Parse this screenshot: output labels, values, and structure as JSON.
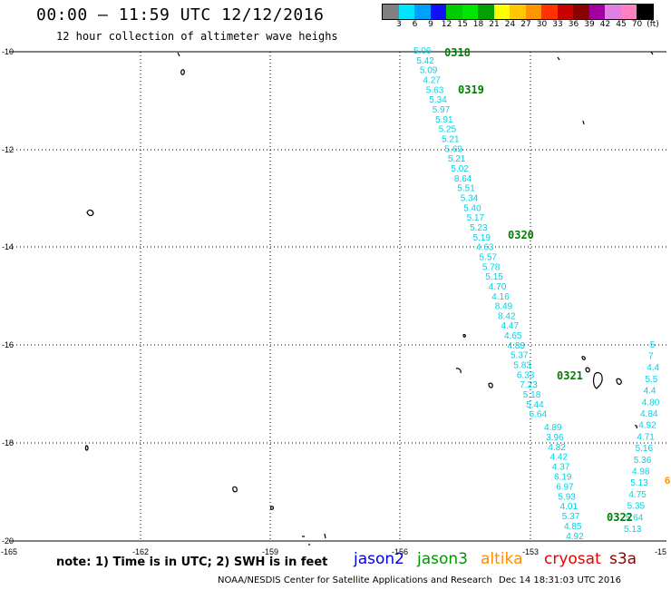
{
  "title": "00:00 – 11:59 UTC 12/12/2016",
  "subtitle": "12 hour collection of altimeter wave heighs",
  "color_scale": {
    "labels": [
      "3",
      "6",
      "9",
      "12",
      "15",
      "18",
      "21",
      "24",
      "27",
      "30",
      "33",
      "36",
      "39",
      "42",
      "45",
      "70",
      "(ft)"
    ],
    "colors": [
      "#808080",
      "#00e5ff",
      "#00a0ff",
      "#1010ff",
      "#00cc00",
      "#00e600",
      "#00a000",
      "#ffff00",
      "#ffc800",
      "#ff9600",
      "#ff3200",
      "#c80000",
      "#8b0000",
      "#a000a0",
      "#e080e0",
      "#ff80c0",
      "#000000"
    ]
  },
  "axes": {
    "x_ticks": [
      "-165",
      "-162",
      "-159",
      "-156",
      "-153",
      "-15"
    ],
    "y_ticks": [
      "-10",
      "-12",
      "-14",
      "-16",
      "-18",
      "-20"
    ]
  },
  "tracks": [
    {
      "values": [
        "5.06",
        "5.42",
        "5.09",
        "4.27",
        "5.63",
        "5.34",
        "5.97",
        "5.91",
        "5.25",
        "5.21",
        "5.69",
        "5.21",
        "5.02",
        "8.64",
        "5.51",
        "5.34",
        "5.40",
        "5.17",
        "5.23",
        "5.19",
        "4.63",
        "5.57",
        "5.78",
        "5.15",
        "4.70",
        "4.16",
        "8.49",
        "8.42",
        "4.47",
        "4.65",
        "4.83",
        "5.37",
        "5.83",
        "6.33",
        "7.23",
        "5.18",
        "5.44",
        "6.64"
      ]
    },
    {
      "values": [
        "4.89",
        "3.96",
        "4.82",
        "4.42",
        "4.37",
        "6.19",
        "6.97",
        "5.93",
        "4.01",
        "5.37",
        "4.85",
        "4.92"
      ]
    },
    {
      "values": [
        "5.13",
        "5.64",
        "5.35",
        "4.75",
        "5.13",
        "4.98",
        "5.36",
        "5.16",
        "4.71",
        "4.92",
        "4.84",
        "4.80",
        "4.4",
        "5.5",
        "4.4",
        "7",
        "5"
      ]
    }
  ],
  "time_labels": [
    "0318",
    "0319",
    "0320",
    "0321",
    "0322"
  ],
  "note": "note: 1) Time is in UTC; 2) SWH is in feet",
  "satellites": [
    {
      "name": "jason2",
      "color": "#0000e6"
    },
    {
      "name": "jason3",
      "color": "#009600"
    },
    {
      "name": "altika",
      "color": "#ff8c00"
    },
    {
      "name": "cryosat",
      "color": "#e60000"
    },
    {
      "name": "s3a",
      "color": "#8b0000"
    }
  ],
  "credit": "NOAA/NESDIS Center for Satellite Applications and Research",
  "generated": "Dec 14 18:31:03 UTC 2016"
}
